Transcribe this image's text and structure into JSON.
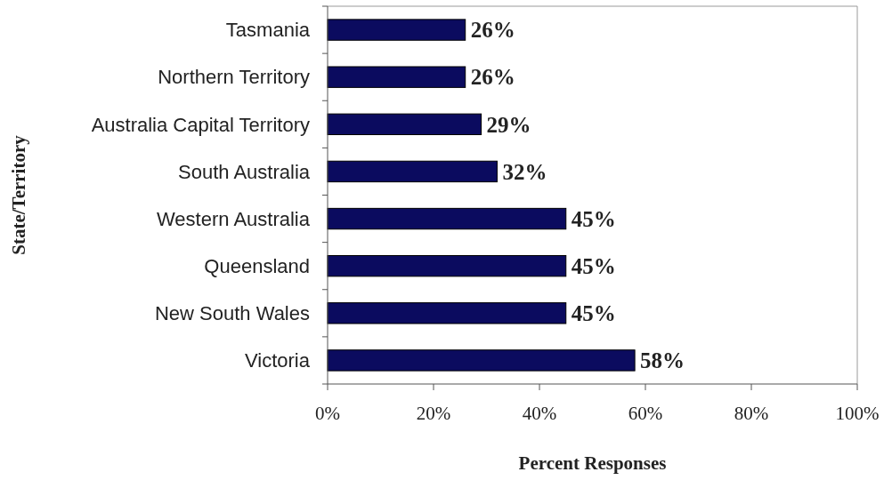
{
  "chart_data": {
    "type": "bar",
    "orientation": "horizontal",
    "xlabel": "Percent Responses",
    "ylabel": "State/Territory",
    "categories": [
      "Tasmania",
      "Northern Territory",
      "Australia Capital Territory",
      "South Australia",
      "Western Australia",
      "Queensland",
      "New South Wales",
      "Victoria"
    ],
    "values": [
      26,
      26,
      29,
      32,
      45,
      45,
      45,
      58
    ],
    "color": "#0b0b5f",
    "value_labels": [
      "26%",
      "26%",
      "29%",
      "32%",
      "45%",
      "45%",
      "45%",
      "58%"
    ],
    "xlim": [
      0,
      100
    ],
    "xticks": [
      {
        "value": 0,
        "label": "0%"
      },
      {
        "value": 20,
        "label": "20%"
      },
      {
        "value": 40,
        "label": "40%"
      },
      {
        "value": 60,
        "label": "60%"
      },
      {
        "value": 80,
        "label": "80%"
      },
      {
        "value": 100,
        "label": "100%"
      }
    ]
  }
}
